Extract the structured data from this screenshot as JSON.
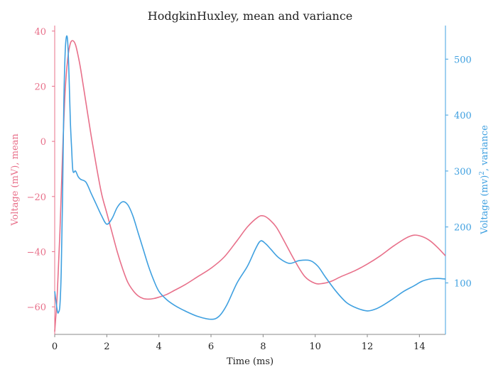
{
  "chart_data": {
    "type": "line",
    "title": "HodgkinHuxley, mean and variance",
    "xlabel": "Time (ms)",
    "ylabel_left": "Voltage (mV), mean",
    "ylabel_right_main": "Voltage (mv)",
    "ylabel_right_sup": "2",
    "ylabel_right_tail": ", variance",
    "xlim": [
      0,
      15
    ],
    "ylim_left": [
      -70,
      42
    ],
    "ylim_right": [
      8,
      560
    ],
    "xticks": [
      0,
      2,
      4,
      6,
      8,
      10,
      12,
      14
    ],
    "yticks_left": [
      -60,
      -40,
      -20,
      0,
      20,
      40
    ],
    "yticks_right": [
      100,
      200,
      300,
      400,
      500
    ],
    "colors": {
      "mean": "#e8708a",
      "variance": "#3fa0e0",
      "axis": "#888888"
    },
    "series": [
      {
        "axis": "left",
        "color": "#e8708a",
        "x": [
          0.0,
          0.1,
          0.2,
          0.3,
          0.4,
          0.5,
          0.6,
          0.7,
          0.8,
          0.9,
          1.0,
          1.2,
          1.4,
          1.6,
          1.8,
          2.0,
          2.2,
          2.4,
          2.6,
          2.8,
          3.0,
          3.2,
          3.4,
          3.6,
          3.8,
          4.0,
          4.3,
          4.6,
          5.0,
          5.5,
          6.0,
          6.5,
          7.0,
          7.4,
          7.8,
          8.0,
          8.2,
          8.5,
          8.8,
          9.2,
          9.6,
          10.0,
          10.3,
          10.6,
          11.0,
          11.5,
          12.0,
          12.5,
          13.0,
          13.5,
          13.8,
          14.1,
          14.4,
          14.7,
          15.0
        ],
        "y": [
          -69,
          -55,
          -33,
          -5,
          18,
          30,
          35.5,
          36.5,
          35,
          31,
          26,
          14,
          2,
          -9,
          -19,
          -26,
          -33,
          -40,
          -46,
          -51,
          -54,
          -56,
          -57,
          -57.2,
          -57,
          -56.5,
          -55.5,
          -54,
          -52,
          -49,
          -46,
          -42,
          -36,
          -31,
          -27.5,
          -27,
          -28,
          -31,
          -36,
          -43,
          -49,
          -51.5,
          -51.5,
          -50.8,
          -49,
          -47,
          -44.5,
          -41.5,
          -38,
          -35,
          -34,
          -34.5,
          -36,
          -38.5,
          -41.5
        ]
      },
      {
        "axis": "right",
        "color": "#3fa0e0",
        "x": [
          0.0,
          0.1,
          0.15,
          0.2,
          0.25,
          0.3,
          0.35,
          0.4,
          0.45,
          0.5,
          0.55,
          0.6,
          0.65,
          0.7,
          0.8,
          0.9,
          1.0,
          1.2,
          1.4,
          1.6,
          1.8,
          2.0,
          2.2,
          2.4,
          2.6,
          2.8,
          3.0,
          3.2,
          3.4,
          3.6,
          3.8,
          4.0,
          4.3,
          4.6,
          5.0,
          5.5,
          6.0,
          6.3,
          6.6,
          7.0,
          7.4,
          7.7,
          7.9,
          8.1,
          8.3,
          8.6,
          9.0,
          9.4,
          9.8,
          10.1,
          10.4,
          10.8,
          11.2,
          11.6,
          12.0,
          12.3,
          12.6,
          13.0,
          13.4,
          13.8,
          14.1,
          14.4,
          14.7,
          15.0
        ],
        "y": [
          85,
          50,
          48,
          60,
          120,
          250,
          420,
          510,
          540,
          530,
          470,
          390,
          340,
          300,
          300,
          290,
          285,
          280,
          260,
          240,
          220,
          205,
          215,
          235,
          245,
          240,
          220,
          190,
          160,
          130,
          105,
          85,
          70,
          60,
          50,
          40,
          35,
          40,
          60,
          100,
          130,
          160,
          175,
          170,
          160,
          145,
          135,
          140,
          140,
          130,
          110,
          85,
          65,
          55,
          50,
          53,
          60,
          72,
          85,
          95,
          103,
          107,
          108,
          107
        ]
      }
    ]
  }
}
